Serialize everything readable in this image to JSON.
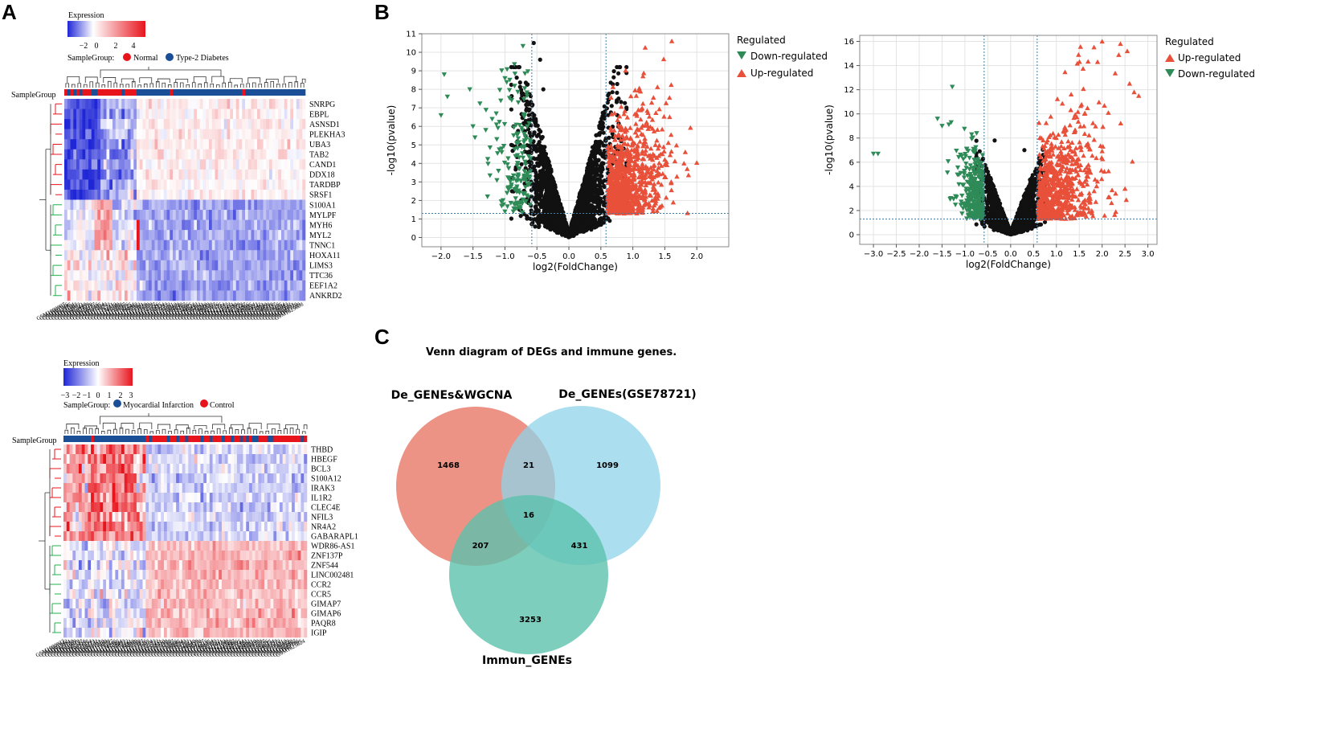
{
  "panels": {
    "a": "A",
    "b": "B",
    "c": "C"
  },
  "heatmap_top": {
    "legend_title": "Expression",
    "ticks": [
      "−2",
      "0",
      "2",
      "4"
    ],
    "group_label": "SampleGroup:",
    "groups": [
      {
        "name": "Normal",
        "color": "#e8141c"
      },
      {
        "name": "Type-2 Diabetes",
        "color": "#1a4e96"
      }
    ],
    "row_header": "SampleGroup",
    "genes": [
      "SNRPG",
      "EBPL",
      "ASNSD1",
      "PLEKHA3",
      "UBA3",
      "TAB2",
      "CAND1",
      "DDX18",
      "TARDBP",
      "SRSF1",
      "S100A1",
      "MYLPF",
      "MYH6",
      "MYL2",
      "TNNC1",
      "HOXA11",
      "LIMS3",
      "TTC36",
      "EEF1A2",
      "ANKRD2"
    ]
  },
  "heatmap_bottom": {
    "legend_title": "Expression",
    "ticks": [
      "−3",
      "−2",
      "−1",
      "0",
      "1",
      "2",
      "3"
    ],
    "group_label": "SampleGroup:",
    "groups": [
      {
        "name": "Myocardial Infarction",
        "color": "#1a4e96"
      },
      {
        "name": "Control",
        "color": "#e8141c"
      }
    ],
    "row_header": "SampleGroup",
    "genes": [
      "THBD",
      "HBEGF",
      "BCL3",
      "S100A12",
      "IRAK3",
      "IL1R2",
      "CLEC4E",
      "NFIL3",
      "NR4A2",
      "GABARAPL1",
      "WDR86-AS1",
      "ZNF137P",
      "ZNF544",
      "LINC002481",
      "CCR2",
      "CCR5",
      "GIMAP7",
      "GIMAP6",
      "PAQR8",
      "IGIP"
    ]
  },
  "colors": {
    "down": "#2e8b57",
    "up": "#e8503a",
    "ns": "#111111",
    "salmon": "#ec8d7e",
    "blue": "#8fd3e8",
    "teal": "#5cc2ad",
    "heat_low": "#1f26d6",
    "heat_high": "#e8141c"
  },
  "chart_data": [
    {
      "type": "scatter",
      "name": "volcano-left",
      "xlabel": "log2(FoldChange)",
      "ylabel": "-log10(pvalue)",
      "xlim": [
        -2.3,
        2.5
      ],
      "ylim": [
        -0.5,
        11
      ],
      "xticks": [
        -2.0,
        -1.5,
        -1.0,
        -0.5,
        0.0,
        0.5,
        1.0,
        1.5,
        2.0
      ],
      "yticks": [
        0,
        1,
        2,
        3,
        4,
        5,
        6,
        7,
        8,
        9,
        10,
        11
      ],
      "xtick_labels": [
        "−2.0",
        "−1.5",
        "−1.0",
        "−0.5",
        "0.0",
        "0.5",
        "1.0",
        "1.5",
        "2.0"
      ],
      "fc_threshold": [
        -0.58,
        0.58
      ],
      "p_threshold": 1.3,
      "legend_title": "Regulated",
      "legend": [
        {
          "label": "Down-regulated",
          "key": "down"
        },
        {
          "label": "Up-regulated",
          "key": "up"
        }
      ],
      "highlight_points": {
        "down": [
          [
            -2.0,
            6.6
          ],
          [
            -1.9,
            7.6
          ],
          [
            -1.95,
            8.8
          ],
          [
            -1.5,
            6.0
          ],
          [
            -1.55,
            8.0
          ],
          [
            -1.2,
            6.4
          ],
          [
            -1.0,
            8.6
          ],
          [
            -1.3,
            5.8
          ],
          [
            -1.05,
            4.8
          ],
          [
            -0.8,
            4.0
          ],
          [
            -0.85,
            2.6
          ],
          [
            -1.0,
            1.4
          ],
          [
            -0.7,
            5.6
          ],
          [
            -0.65,
            6.0
          ]
        ],
        "up": [
          [
            1.2,
            4.5
          ],
          [
            1.5,
            4.2
          ],
          [
            1.8,
            4.0
          ],
          [
            1.85,
            3.7
          ],
          [
            1.6,
            3.0
          ],
          [
            1.3,
            2.0
          ],
          [
            1.0,
            1.4
          ]
        ],
        "ns": [
          [
            -0.45,
            9.6
          ],
          [
            -0.55,
            10.5
          ],
          [
            -0.4,
            8.0
          ]
        ]
      }
    },
    {
      "type": "scatter",
      "name": "volcano-right",
      "xlabel": "log2(FoldChange)",
      "ylabel": "-log10(pvalue)",
      "xlim": [
        -3.3,
        3.2
      ],
      "ylim": [
        -0.8,
        16.5
      ],
      "xticks": [
        -3.0,
        -2.5,
        -2.0,
        -1.5,
        -1.0,
        -0.5,
        0.0,
        0.5,
        1.0,
        1.5,
        2.0,
        2.5,
        3.0
      ],
      "yticks": [
        0,
        2,
        4,
        6,
        8,
        10,
        12,
        14,
        16
      ],
      "xtick_labels": [
        "−3.0",
        "−2.5",
        "−2.0",
        "−1.5",
        "−1.0",
        "−0.5",
        "0.0",
        "0.5",
        "1.0",
        "1.5",
        "2.0",
        "2.5",
        "3.0"
      ],
      "fc_threshold": [
        -0.58,
        0.58
      ],
      "p_threshold": 1.3,
      "legend_title": "Regulated",
      "legend": [
        {
          "label": "Up-regulated",
          "key": "up"
        },
        {
          "label": "Down-regulated",
          "key": "down"
        }
      ],
      "highlight_points": {
        "down": [
          [
            -3.0,
            6.7
          ],
          [
            -2.9,
            6.7
          ],
          [
            -1.6,
            9.6
          ],
          [
            -1.5,
            9.0
          ],
          [
            -1.3,
            9.3
          ]
        ],
        "up": [
          [
            2.0,
            16.0
          ],
          [
            2.4,
            15.8
          ],
          [
            2.55,
            15.2
          ],
          [
            2.6,
            12.5
          ],
          [
            2.7,
            11.8
          ],
          [
            2.8,
            11.5
          ],
          [
            2.5,
            3.8
          ],
          [
            1.9,
            14.3
          ]
        ],
        "ns": [
          [
            -0.35,
            7.8
          ],
          [
            0.3,
            7.0
          ]
        ]
      }
    }
  ],
  "venn": {
    "title": "Venn diagram of DEGs and immune genes.",
    "sets": [
      {
        "label": "De_GENEs&WGCNA",
        "key": "salmon"
      },
      {
        "label": "De_GENEs(GSE78721)",
        "key": "blue"
      },
      {
        "label": "Immun_GENEs",
        "key": "teal"
      }
    ],
    "regions": {
      "a_only": "1468",
      "ab": "21",
      "b_only": "1099",
      "abc": "16",
      "ac": "207",
      "bc": "431",
      "c_only": "3253"
    }
  }
}
